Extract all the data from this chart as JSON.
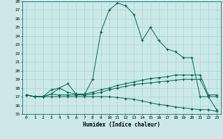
{
  "xlabel": "Humidex (Indice chaleur)",
  "bg_color": "#cce8e8",
  "grid_color": "#a8d4d4",
  "line_color": "#006655",
  "xlim": [
    -0.5,
    23.5
  ],
  "ylim": [
    15,
    28
  ],
  "xticks": [
    0,
    1,
    2,
    3,
    4,
    5,
    6,
    7,
    8,
    9,
    10,
    11,
    12,
    13,
    14,
    15,
    16,
    17,
    18,
    19,
    20,
    21,
    22,
    23
  ],
  "yticks": [
    15,
    16,
    17,
    18,
    19,
    20,
    21,
    22,
    23,
    24,
    25,
    26,
    27,
    28
  ],
  "series": [
    {
      "x": [
        0,
        1,
        2,
        3,
        4,
        5,
        6,
        7,
        8,
        9,
        10,
        11,
        12,
        13,
        14,
        15,
        16,
        17,
        18,
        19,
        20,
        21,
        22,
        23
      ],
      "y": [
        17.2,
        17.0,
        17.0,
        17.3,
        17.2,
        17.2,
        17.2,
        17.2,
        19.0,
        24.5,
        27.0,
        27.8,
        27.5,
        26.5,
        23.5,
        25.0,
        23.5,
        22.5,
        22.2,
        21.5,
        21.5,
        17.0,
        17.0,
        17.0
      ]
    },
    {
      "x": [
        0,
        1,
        2,
        3,
        4,
        5,
        6,
        7,
        8,
        9,
        10,
        11,
        12,
        13,
        14,
        15,
        16,
        17,
        18,
        19,
        20,
        21,
        22,
        23
      ],
      "y": [
        17.2,
        17.0,
        17.0,
        17.8,
        18.0,
        17.5,
        17.3,
        17.3,
        17.5,
        17.8,
        18.0,
        18.3,
        18.5,
        18.7,
        18.9,
        19.1,
        19.2,
        19.3,
        19.5,
        19.5,
        19.5,
        19.5,
        17.2,
        17.2
      ]
    },
    {
      "x": [
        0,
        1,
        2,
        3,
        4,
        5,
        6,
        7,
        8,
        9,
        10,
        11,
        12,
        13,
        14,
        15,
        16,
        17,
        18,
        19,
        20,
        21,
        22,
        23
      ],
      "y": [
        17.2,
        17.0,
        17.0,
        17.3,
        18.0,
        18.5,
        17.3,
        17.2,
        17.3,
        17.5,
        17.8,
        18.0,
        18.2,
        18.4,
        18.5,
        18.6,
        18.7,
        18.8,
        18.9,
        19.0,
        19.0,
        19.0,
        17.0,
        15.5
      ]
    },
    {
      "x": [
        0,
        1,
        2,
        3,
        4,
        5,
        6,
        7,
        8,
        9,
        10,
        11,
        12,
        13,
        14,
        15,
        16,
        17,
        18,
        19,
        20,
        21,
        22,
        23
      ],
      "y": [
        17.2,
        17.0,
        17.0,
        17.0,
        17.0,
        17.0,
        17.0,
        17.0,
        17.0,
        17.0,
        17.0,
        16.9,
        16.8,
        16.7,
        16.5,
        16.3,
        16.1,
        16.0,
        15.8,
        15.7,
        15.6,
        15.5,
        15.5,
        15.3
      ]
    }
  ]
}
